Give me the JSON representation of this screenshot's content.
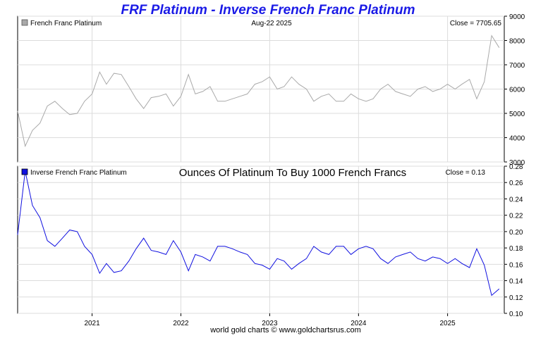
{
  "title": "FRF Platinum - Inverse French Franc Platinum",
  "footer": "world gold charts © www.goldchartsrus.com",
  "chart_data": [
    {
      "type": "line",
      "panel": "upper",
      "legend": "French Franc Platinum",
      "date_label": "Aug-22  2025",
      "close_label": "Close = 7705.65",
      "color": "#a9a9a9",
      "ylim": [
        3000,
        9000
      ],
      "yticks": [
        3000,
        4000,
        5000,
        6000,
        7000,
        8000,
        9000
      ],
      "ytick_labels": [
        "3000",
        "4000",
        "5000",
        "6000",
        "7000",
        "8000",
        "9000"
      ],
      "grid": true,
      "x": [
        "2020-03",
        "2020-04",
        "2020-05",
        "2020-06",
        "2020-07",
        "2020-08",
        "2020-09",
        "2020-10",
        "2020-11",
        "2020-12",
        "2021-01",
        "2021-02",
        "2021-03",
        "2021-04",
        "2021-05",
        "2021-06",
        "2021-07",
        "2021-08",
        "2021-09",
        "2021-10",
        "2021-11",
        "2021-12",
        "2022-01",
        "2022-02",
        "2022-03",
        "2022-04",
        "2022-05",
        "2022-06",
        "2022-07",
        "2022-08",
        "2022-09",
        "2022-10",
        "2022-11",
        "2022-12",
        "2023-01",
        "2023-02",
        "2023-03",
        "2023-04",
        "2023-05",
        "2023-06",
        "2023-07",
        "2023-08",
        "2023-09",
        "2023-10",
        "2023-11",
        "2023-12",
        "2024-01",
        "2024-02",
        "2024-03",
        "2024-04",
        "2024-05",
        "2024-06",
        "2024-07",
        "2024-08",
        "2024-09",
        "2024-10",
        "2024-11",
        "2024-12",
        "2025-01",
        "2025-02",
        "2025-03",
        "2025-04",
        "2025-05",
        "2025-06",
        "2025-07",
        "2025-08"
      ],
      "values": [
        5100,
        3650,
        4300,
        4600,
        5300,
        5500,
        5200,
        4950,
        5000,
        5500,
        5800,
        6700,
        6200,
        6650,
        6600,
        6100,
        5600,
        5200,
        5650,
        5700,
        5800,
        5300,
        5700,
        6600,
        5800,
        5900,
        6100,
        5500,
        5500,
        5600,
        5700,
        5800,
        6200,
        6300,
        6500,
        6000,
        6100,
        6500,
        6200,
        6000,
        5500,
        5700,
        5800,
        5500,
        5500,
        5800,
        5600,
        5500,
        5600,
        6000,
        6200,
        5900,
        5800,
        5700,
        6000,
        6100,
        5900,
        6000,
        6200,
        6000,
        6200,
        6400,
        5600,
        6300,
        8200,
        7705.65
      ]
    },
    {
      "type": "line",
      "panel": "lower",
      "legend": "Inverse French Franc Platinum",
      "title": "Ounces Of Platinum To Buy 1000 French Francs",
      "close_label": "Close = 0.13",
      "color": "#1010e0",
      "ylim": [
        0.1,
        0.28
      ],
      "yticks": [
        0.1,
        0.12,
        0.14,
        0.16,
        0.18,
        0.2,
        0.22,
        0.24,
        0.26,
        0.28
      ],
      "ytick_labels": [
        "0.10",
        "0.12",
        "0.14",
        "0.16",
        "0.18",
        "0.20",
        "0.22",
        "0.24",
        "0.26",
        "0.28"
      ],
      "xtick_labels": [
        "2021",
        "2022",
        "2023",
        "2024",
        "2025"
      ],
      "grid": true,
      "x": [
        "2020-03",
        "2020-04",
        "2020-05",
        "2020-06",
        "2020-07",
        "2020-08",
        "2020-09",
        "2020-10",
        "2020-11",
        "2020-12",
        "2021-01",
        "2021-02",
        "2021-03",
        "2021-04",
        "2021-05",
        "2021-06",
        "2021-07",
        "2021-08",
        "2021-09",
        "2021-10",
        "2021-11",
        "2021-12",
        "2022-01",
        "2022-02",
        "2022-03",
        "2022-04",
        "2022-05",
        "2022-06",
        "2022-07",
        "2022-08",
        "2022-09",
        "2022-10",
        "2022-11",
        "2022-12",
        "2023-01",
        "2023-02",
        "2023-03",
        "2023-04",
        "2023-05",
        "2023-06",
        "2023-07",
        "2023-08",
        "2023-09",
        "2023-10",
        "2023-11",
        "2023-12",
        "2024-01",
        "2024-02",
        "2024-03",
        "2024-04",
        "2024-05",
        "2024-06",
        "2024-07",
        "2024-08",
        "2024-09",
        "2024-10",
        "2024-11",
        "2024-12",
        "2025-01",
        "2025-02",
        "2025-03",
        "2025-04",
        "2025-05",
        "2025-06",
        "2025-07",
        "2025-08"
      ],
      "values": [
        0.196,
        0.274,
        0.232,
        0.217,
        0.189,
        0.182,
        0.192,
        0.202,
        0.2,
        0.182,
        0.172,
        0.149,
        0.161,
        0.15,
        0.152,
        0.164,
        0.179,
        0.192,
        0.177,
        0.175,
        0.172,
        0.189,
        0.175,
        0.152,
        0.172,
        0.169,
        0.164,
        0.182,
        0.182,
        0.179,
        0.175,
        0.172,
        0.161,
        0.159,
        0.154,
        0.167,
        0.164,
        0.154,
        0.161,
        0.167,
        0.182,
        0.175,
        0.172,
        0.182,
        0.182,
        0.172,
        0.179,
        0.182,
        0.179,
        0.167,
        0.161,
        0.169,
        0.172,
        0.175,
        0.167,
        0.164,
        0.169,
        0.167,
        0.161,
        0.167,
        0.161,
        0.156,
        0.179,
        0.159,
        0.122,
        0.13
      ]
    }
  ]
}
